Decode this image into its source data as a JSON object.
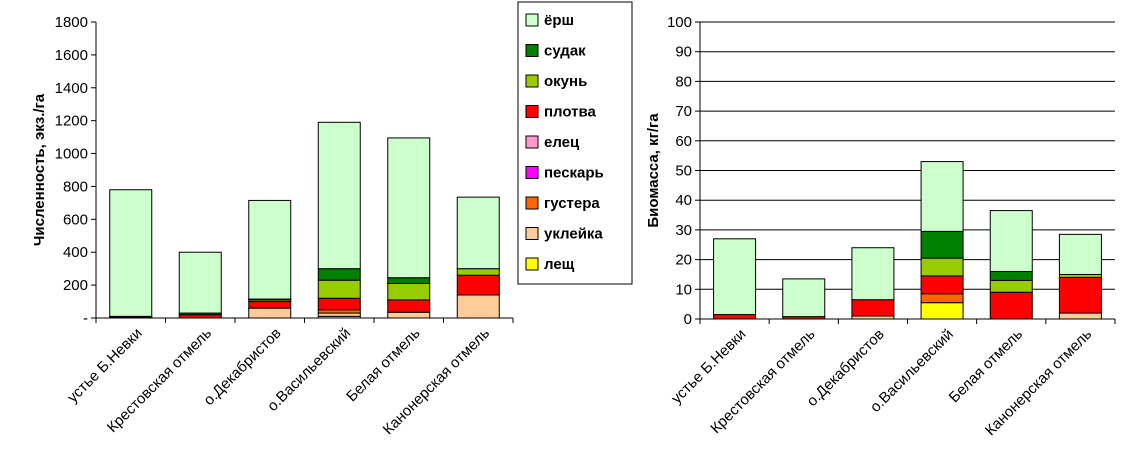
{
  "chart_data": [
    {
      "type": "bar",
      "stacked": true,
      "title": "",
      "xlabel": "",
      "ylabel": "Численность, экз./га",
      "ylim": [
        0,
        1800
      ],
      "yticks": [
        0,
        200,
        400,
        600,
        800,
        1000,
        1200,
        1400,
        1600,
        1800
      ],
      "ytick_labels": [
        "-",
        "200",
        "400",
        "600",
        "800",
        "1000",
        "1200",
        "1400",
        "1600",
        "1800"
      ],
      "grid": false,
      "legend_position": "right",
      "categories": [
        "устье Б.Невки",
        "Крестовская отмель",
        "о.Декабристов",
        "о.Васильевский",
        "Белая отмель",
        "Канонерская отмель"
      ],
      "series": [
        {
          "name": "лещ",
          "color": "#ffff00",
          "values": [
            0,
            0,
            0,
            10,
            0,
            0
          ]
        },
        {
          "name": "уклейка",
          "color": "#ffcc99",
          "values": [
            0,
            0,
            60,
            20,
            35,
            140
          ]
        },
        {
          "name": "густера",
          "color": "#ff6600",
          "values": [
            0,
            0,
            0,
            20,
            0,
            0
          ]
        },
        {
          "name": "пескарь",
          "color": "#ff00ff",
          "values": [
            0,
            0,
            0,
            0,
            0,
            0
          ]
        },
        {
          "name": "елец",
          "color": "#ff99cc",
          "values": [
            0,
            0,
            0,
            0,
            0,
            0
          ]
        },
        {
          "name": "плотва",
          "color": "#ff0000",
          "values": [
            5,
            20,
            40,
            70,
            75,
            120
          ]
        },
        {
          "name": "окунь",
          "color": "#99cc00",
          "values": [
            0,
            0,
            10,
            110,
            100,
            40
          ]
        },
        {
          "name": "судак",
          "color": "#008000",
          "values": [
            5,
            10,
            5,
            70,
            35,
            0
          ]
        },
        {
          "name": "ёрш",
          "color": "#ccffcc",
          "values": [
            770,
            370,
            600,
            890,
            850,
            435
          ]
        }
      ]
    },
    {
      "type": "bar",
      "stacked": true,
      "title": "",
      "xlabel": "",
      "ylabel": "Биомасса, кг/га",
      "ylim": [
        0,
        100
      ],
      "yticks": [
        0,
        10,
        20,
        30,
        40,
        50,
        60,
        70,
        80,
        90,
        100
      ],
      "ytick_labels": [
        "0",
        "10",
        "20",
        "30",
        "40",
        "50",
        "60",
        "70",
        "80",
        "90",
        "100"
      ],
      "grid": true,
      "categories": [
        "устье Б.Невки",
        "Крестовская отмель",
        "о.Декабристов",
        "о.Васильевский",
        "Белая отмель",
        "Канонерская отмель"
      ],
      "series": [
        {
          "name": "лещ",
          "color": "#ffff00",
          "values": [
            0,
            0,
            0,
            5.5,
            0,
            0
          ]
        },
        {
          "name": "уклейка",
          "color": "#ffcc99",
          "values": [
            0,
            0,
            1.0,
            0,
            0,
            2.0
          ]
        },
        {
          "name": "густера",
          "color": "#ff6600",
          "values": [
            0,
            0,
            0,
            3.0,
            0,
            0
          ]
        },
        {
          "name": "пескарь",
          "color": "#ff00ff",
          "values": [
            0,
            0,
            0,
            0,
            0,
            0
          ]
        },
        {
          "name": "елец",
          "color": "#ff99cc",
          "values": [
            0,
            0,
            0,
            0,
            0,
            0
          ]
        },
        {
          "name": "плотва",
          "color": "#ff0000",
          "values": [
            1.5,
            0.8,
            5.5,
            6.0,
            9.0,
            12.0
          ]
        },
        {
          "name": "окунь",
          "color": "#99cc00",
          "values": [
            0,
            0,
            0,
            6.0,
            4.0,
            1.0
          ]
        },
        {
          "name": "судак",
          "color": "#008000",
          "values": [
            0,
            0,
            0,
            9.0,
            3.0,
            0
          ]
        },
        {
          "name": "ёрш",
          "color": "#ccffcc",
          "values": [
            25.5,
            12.7,
            17.5,
            23.5,
            20.5,
            13.5
          ]
        }
      ]
    }
  ],
  "legend": {
    "items": [
      {
        "label": "ёрш",
        "color": "#ccffcc"
      },
      {
        "label": "судак",
        "color": "#008000"
      },
      {
        "label": "окунь",
        "color": "#99cc00"
      },
      {
        "label": "плотва",
        "color": "#ff0000"
      },
      {
        "label": "елец",
        "color": "#ff99cc"
      },
      {
        "label": "пескарь",
        "color": "#ff00ff"
      },
      {
        "label": "густера",
        "color": "#ff6600"
      },
      {
        "label": "уклейка",
        "color": "#ffcc99"
      },
      {
        "label": "лещ",
        "color": "#ffff00"
      }
    ]
  }
}
